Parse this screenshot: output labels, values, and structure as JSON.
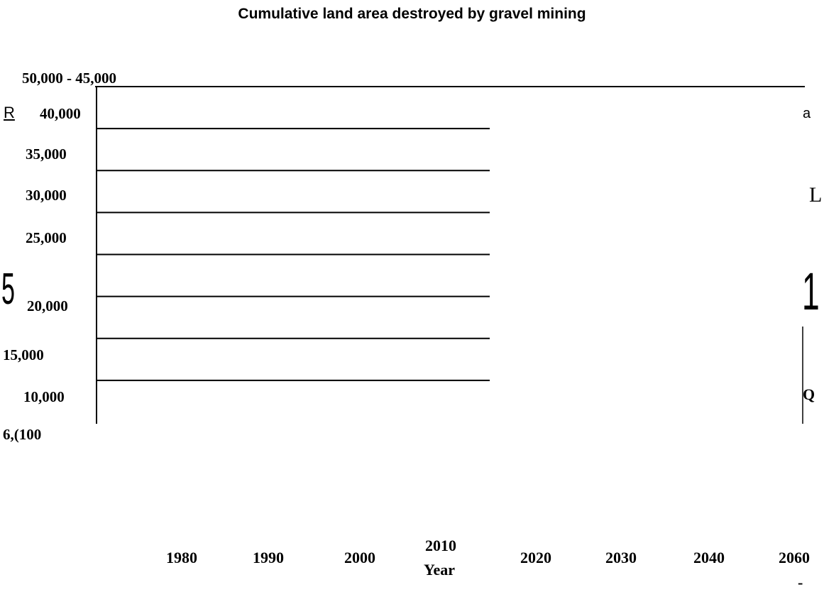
{
  "chart_data": {
    "type": "line",
    "title": "Cumulative land area destroyed by gravel mining",
    "xlabel": "Year",
    "ylabel": "",
    "x_ticks": [
      "1980",
      "1990",
      "2000",
      "2010",
      "2020",
      "2030",
      "2040",
      "2060"
    ],
    "y_ticks": [
      "6,(100",
      "10,000",
      "15,000",
      "20,000",
      "25,000",
      "30,000",
      "35,000",
      "40,000",
      "50,000 - 45,000"
    ],
    "gridline_values": [
      10000,
      15000,
      20000,
      25000,
      30000,
      35000,
      40000,
      45000
    ],
    "ylim": [
      5000,
      45000
    ],
    "grid": true,
    "series": []
  },
  "stray_glyphs": {
    "r_mark": "R",
    "a_mark": "a",
    "l_mark": "L",
    "one_mark": "1",
    "q_mark": "Q",
    "five_mark": "5",
    "dash_mark": "-"
  }
}
